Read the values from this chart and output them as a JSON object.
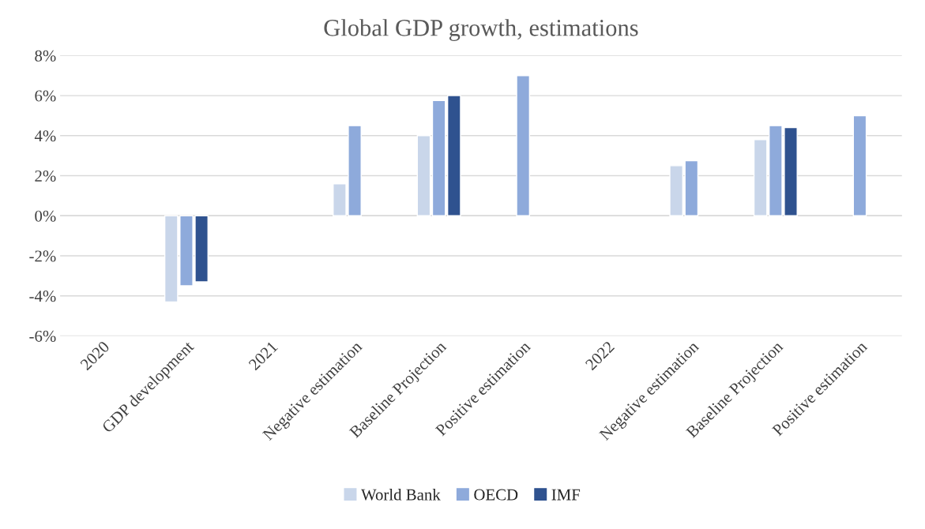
{
  "chart_data": {
    "type": "bar",
    "title": "Global GDP growth, estimations",
    "categories": [
      "2020",
      "GDP development",
      "2021",
      "Negative estimation",
      "Baseline Projection",
      "Positive estimation",
      "2022",
      "Negative estimation",
      "Baseline Projection",
      "Positive estimation"
    ],
    "series": [
      {
        "name": "World Bank",
        "color": "#c9d6ea",
        "values": [
          null,
          -4.3,
          null,
          1.6,
          4.0,
          null,
          null,
          2.5,
          3.8,
          null
        ]
      },
      {
        "name": "OECD",
        "color": "#8eaadb",
        "values": [
          null,
          -3.5,
          null,
          4.5,
          5.75,
          7.0,
          null,
          2.75,
          4.5,
          5.0
        ]
      },
      {
        "name": "IMF",
        "color": "#2f528f",
        "values": [
          null,
          -3.3,
          null,
          null,
          6.0,
          null,
          null,
          null,
          4.4,
          null
        ]
      }
    ],
    "ylim": [
      -6,
      8
    ],
    "yticks": [
      {
        "value": -6,
        "label": "-6%"
      },
      {
        "value": -4,
        "label": "-4%"
      },
      {
        "value": -2,
        "label": "-2%"
      },
      {
        "value": 0,
        "label": "0%"
      },
      {
        "value": 2,
        "label": "2%"
      },
      {
        "value": 4,
        "label": "4%"
      },
      {
        "value": 6,
        "label": "6%"
      },
      {
        "value": 8,
        "label": "8%"
      }
    ],
    "grid": "y",
    "legend": "bottom"
  }
}
